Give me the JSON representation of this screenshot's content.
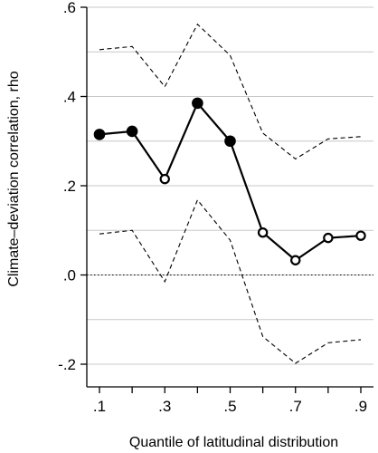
{
  "chart_data": {
    "type": "line",
    "xlabel": "Quantile of latitudinal distribution",
    "ylabel": "Climate–deviation correlation, rho",
    "xlim": [
      0.1,
      0.9
    ],
    "ylim": [
      -0.2,
      0.6
    ],
    "x_ticks": [
      0.1,
      0.2,
      0.3,
      0.4,
      0.5,
      0.6,
      0.7,
      0.8,
      0.9
    ],
    "x_tick_labels": [
      ".1",
      ".3",
      ".5",
      ".7",
      ".9"
    ],
    "x_tick_label_values": [
      0.1,
      0.3,
      0.5,
      0.7,
      0.9
    ],
    "y_ticks": [
      -0.2,
      0.0,
      0.2,
      0.4,
      0.6
    ],
    "y_tick_labels": [
      "-.2",
      ".0",
      ".2",
      ".4",
      ".6"
    ],
    "gridlines_y": [
      -0.2,
      -0.1,
      0.0,
      0.1,
      0.2,
      0.3,
      0.4,
      0.5,
      0.6
    ],
    "grid": true,
    "reference_line_y": 0.0,
    "series": [
      {
        "style": "solid line with markers",
        "x": [
          0.1,
          0.2,
          0.3,
          0.4,
          0.5,
          0.6,
          0.7,
          0.8,
          0.9
        ],
        "y": [
          0.315,
          0.322,
          0.215,
          0.385,
          0.3,
          0.095,
          0.033,
          0.083,
          0.088
        ],
        "filled_markers": [
          true,
          true,
          false,
          true,
          true,
          false,
          false,
          false,
          false
        ]
      },
      {
        "style": "dashed upper bound",
        "x": [
          0.1,
          0.2,
          0.3,
          0.4,
          0.5,
          0.6,
          0.7,
          0.8,
          0.9
        ],
        "y": [
          0.505,
          0.512,
          0.422,
          0.562,
          0.492,
          0.318,
          0.26,
          0.305,
          0.31
        ]
      },
      {
        "style": "dashed lower bound",
        "x": [
          0.1,
          0.2,
          0.3,
          0.4,
          0.5,
          0.6,
          0.7,
          0.8,
          0.9
        ],
        "y": [
          0.092,
          0.1,
          -0.015,
          0.168,
          0.078,
          -0.138,
          -0.198,
          -0.152,
          -0.145
        ]
      }
    ]
  }
}
